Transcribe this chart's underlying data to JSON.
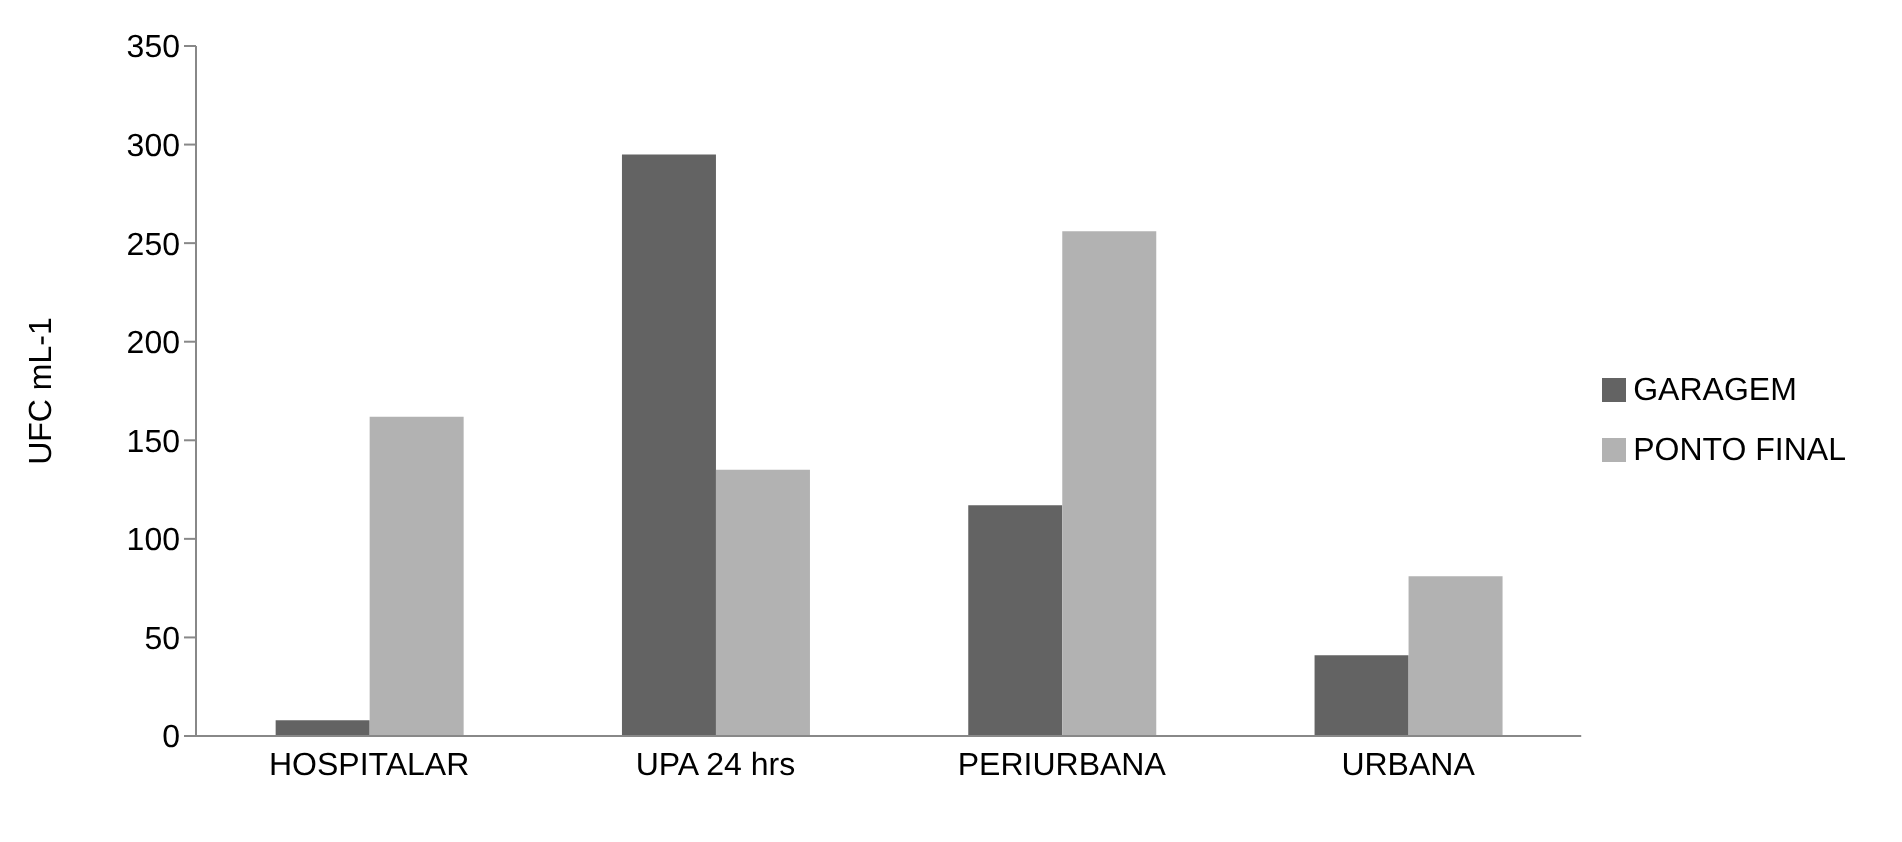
{
  "chart_data": {
    "type": "bar",
    "ylabel": "UFC mL-1",
    "categories": [
      "HOSPITALAR",
      "UPA 24 hrs",
      "PERIURBANA",
      "URBANA"
    ],
    "series": [
      {
        "name": "GARAGEM",
        "color": "#636363",
        "values": [
          8,
          295,
          117,
          41
        ]
      },
      {
        "name": "PONTO FINAL",
        "color": "#b2b2b2",
        "values": [
          162,
          135,
          256,
          81
        ]
      }
    ],
    "ylim": [
      0,
      350
    ],
    "yticks": [
      0,
      50,
      100,
      150,
      200,
      250,
      300,
      350
    ],
    "grid": false,
    "legend": "right"
  }
}
